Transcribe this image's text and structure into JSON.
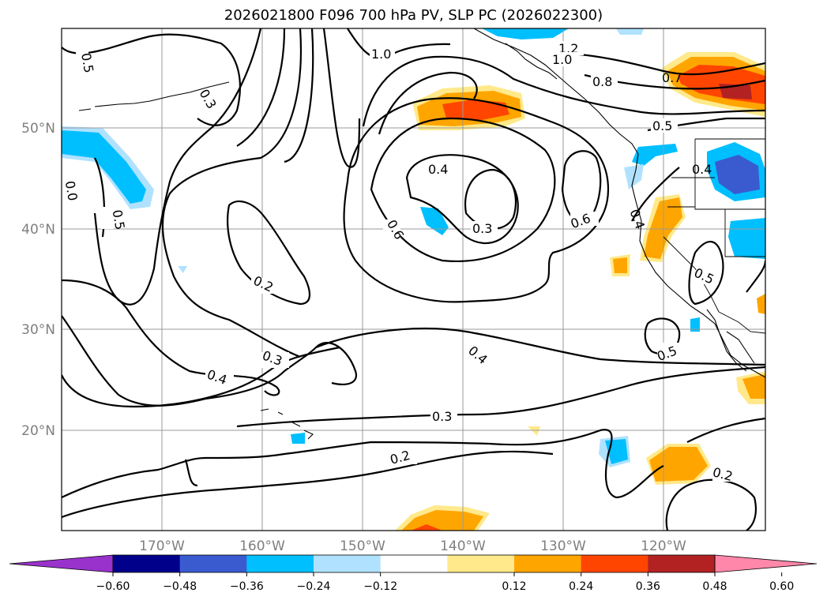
{
  "title": "2026021800 F096 700 hPa PV, SLP PC (2026022300)",
  "lon_labels": [
    "170°W",
    "160°W",
    "150°W",
    "140°W",
    "130°W",
    "120°W"
  ],
  "lat_labels": [
    "50°N",
    "40°N",
    "30°N",
    "20°N"
  ],
  "contour_labels": {
    "c05a": "0.5",
    "c03a": "0.3",
    "c10a": "1.0",
    "c12": "1.2",
    "c10b": "1.0",
    "c08": "0.8",
    "c07": "0.7",
    "c05b": "0.5",
    "c04a": "0.4",
    "c04b": "0.4",
    "c06a": "0.6",
    "c03b": "0.3",
    "c06b": "0.6",
    "c04c": "0.4",
    "c05c": "0.5",
    "c02a": "0.2",
    "c03c": "0.3",
    "c04d": "0.4",
    "c04e": "0.4",
    "c05d": "0.5",
    "c03d": "0.3",
    "c02b": "0.2",
    "c02c": "0.2",
    "c00": "0.0",
    "c05e": "0.5"
  },
  "colorbar": {
    "ticks": [
      "−0.60",
      "−0.48",
      "−0.36",
      "−0.24",
      "−0.12",
      "0.12",
      "0.24",
      "0.36",
      "0.48",
      "0.60"
    ],
    "colors": [
      "#9932cc",
      "#00008b",
      "#3a5bd0",
      "#00bfff",
      "#b0e2ff",
      "#ffffff",
      "#ffe98a",
      "#ffa500",
      "#ff4500",
      "#b22222",
      "#ff88aa"
    ]
  }
}
